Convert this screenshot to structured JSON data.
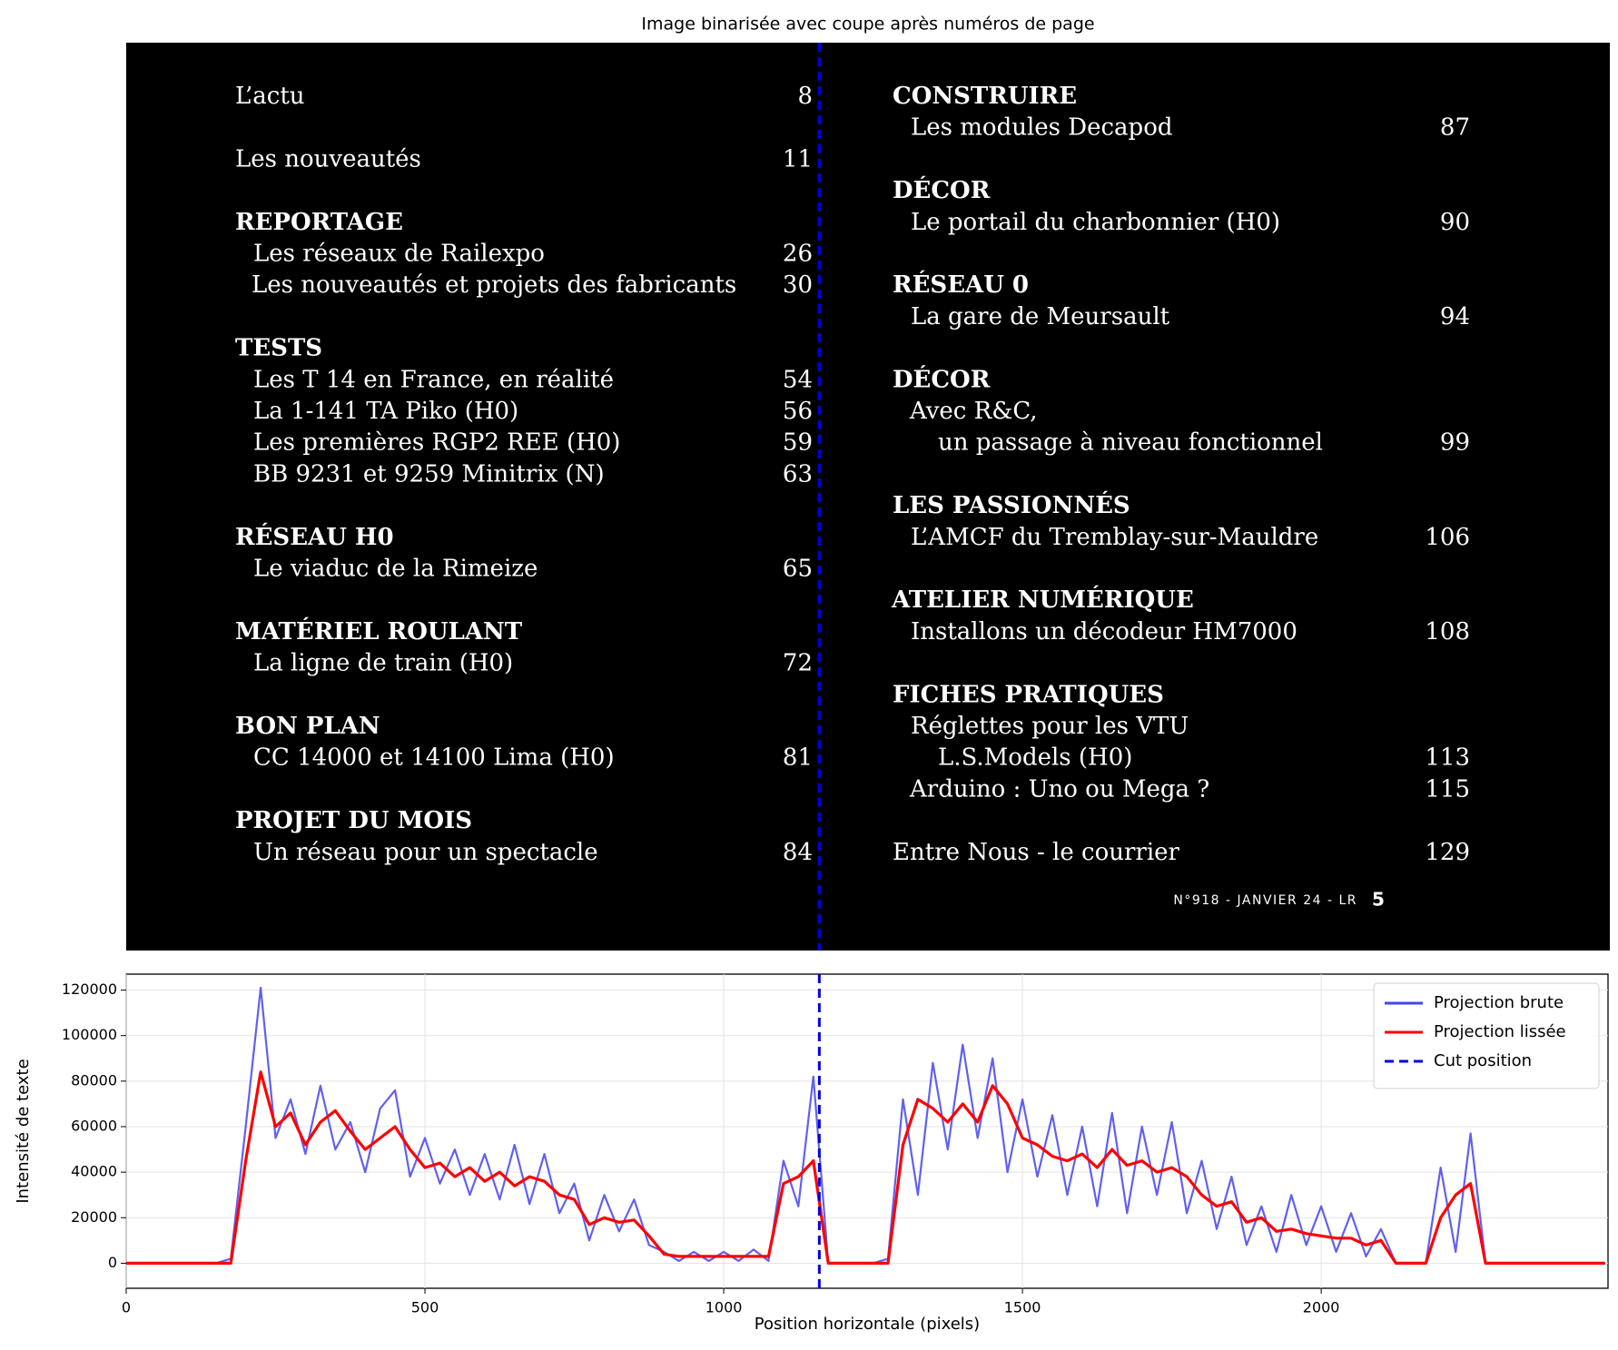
{
  "image_panel": {
    "title": "Image binarisée avec coupe après numéros de page",
    "left": [
      {
        "text": "L’actu",
        "page": "8"
      },
      {
        "text": "Les nouveautés",
        "page": "11"
      },
      {
        "text": "REPORTAGE",
        "heading": true
      },
      {
        "text": "Les réseaux de Railexpo",
        "page": "26"
      },
      {
        "text": "Les nouveautés et projets des fabricants",
        "page": "30"
      },
      {
        "text": "TESTS",
        "heading": true
      },
      {
        "text": "Les T 14 en France, en réalité",
        "page": "54"
      },
      {
        "text": "La 1-141 TA Piko (H0)",
        "page": "56"
      },
      {
        "text": "Les premières RGP2 REE (H0)",
        "page": "59"
      },
      {
        "text": "BB 9231 et 9259 Minitrix (N)",
        "page": "63"
      },
      {
        "text": "RÉSEAU H0",
        "heading": true
      },
      {
        "text": "Le viaduc de la Rimeize",
        "page": "65"
      },
      {
        "text": "MATÉRIEL ROULANT",
        "heading": true
      },
      {
        "text": "La ligne de train (H0)",
        "page": "72"
      },
      {
        "text": "BON PLAN",
        "heading": true
      },
      {
        "text": "CC 14000 et 14100 Lima (H0)",
        "page": "81"
      },
      {
        "text": "PROJET DU MOIS",
        "heading": true
      },
      {
        "text": "Un réseau pour un spectacle",
        "page": "84"
      }
    ],
    "right": [
      {
        "text": "CONSTRUIRE",
        "heading": true
      },
      {
        "text": "Les modules Decapod",
        "page": "87"
      },
      {
        "text": "DÉCOR",
        "heading": true
      },
      {
        "text": "Le portail du charbonnier (H0)",
        "page": "90"
      },
      {
        "text": "RÉSEAU 0",
        "heading": true
      },
      {
        "text": "La gare de Meursault",
        "page": "94"
      },
      {
        "text": "DÉCOR",
        "heading": true
      },
      {
        "text": "Avec R&C,"
      },
      {
        "text": "un passage à niveau fonctionnel",
        "page": "99"
      },
      {
        "text": "LES PASSIONNÉS",
        "heading": true
      },
      {
        "text": "L’AMCF du Tremblay-sur-Mauldre",
        "page": "106"
      },
      {
        "text": "ATELIER NUMÉRIQUE",
        "heading": true
      },
      {
        "text": "Installons un décodeur HM7000",
        "page": "108"
      },
      {
        "text": "FICHES PRATIQUES",
        "heading": true
      },
      {
        "text": "Réglettes pour les VTU"
      },
      {
        "text": "L.S.Models (H0)",
        "page": "113"
      },
      {
        "text": "Arduino : Uno ou Mega ?",
        "page": "115"
      },
      {
        "text": "Entre Nous - le courrier",
        "page": "129"
      }
    ],
    "footer": "N°918 - JANVIER 24 - LR",
    "footer_page": "5"
  },
  "chart_data": {
    "type": "line",
    "xlabel": "Position horizontale (pixels)",
    "ylabel": "Intensité de texte",
    "xlim": [
      0,
      2480
    ],
    "ylim": [
      -11000,
      127000
    ],
    "xticks": [
      0,
      500,
      1000,
      1500,
      2000
    ],
    "yticks": [
      0,
      20000,
      40000,
      60000,
      80000,
      100000,
      120000
    ],
    "grid": true,
    "legend": "upper right",
    "x": [
      0,
      25,
      50,
      75,
      100,
      125,
      150,
      175,
      200,
      225,
      250,
      275,
      300,
      325,
      350,
      375,
      400,
      425,
      450,
      475,
      500,
      525,
      550,
      575,
      600,
      625,
      650,
      675,
      700,
      725,
      750,
      775,
      800,
      825,
      850,
      875,
      900,
      925,
      950,
      975,
      1000,
      1025,
      1050,
      1075,
      1100,
      1125,
      1150,
      1175,
      1200,
      1225,
      1250,
      1275,
      1300,
      1325,
      1350,
      1375,
      1400,
      1425,
      1450,
      1475,
      1500,
      1525,
      1550,
      1575,
      1600,
      1625,
      1650,
      1675,
      1700,
      1725,
      1750,
      1775,
      1800,
      1825,
      1850,
      1875,
      1900,
      1925,
      1950,
      1975,
      2000,
      2025,
      2050,
      2075,
      2100,
      2125,
      2150,
      2175,
      2200,
      2225,
      2250,
      2275,
      2300,
      2325,
      2350,
      2375,
      2400,
      2425,
      2450,
      2475
    ],
    "series": [
      {
        "name": "Projection brute",
        "color": "#4444ee",
        "values": [
          0,
          0,
          0,
          0,
          0,
          0,
          0,
          2000,
          60000,
          121000,
          55000,
          72000,
          48000,
          78000,
          50000,
          62000,
          40000,
          68000,
          76000,
          38000,
          55000,
          35000,
          50000,
          30000,
          48000,
          28000,
          52000,
          26000,
          48000,
          22000,
          35000,
          10000,
          30000,
          14000,
          28000,
          8000,
          5000,
          1000,
          5000,
          1000,
          5000,
          1000,
          6000,
          1000,
          45000,
          25000,
          82000,
          0,
          0,
          0,
          0,
          2000,
          72000,
          30000,
          88000,
          50000,
          96000,
          55000,
          90000,
          40000,
          72000,
          38000,
          65000,
          30000,
          60000,
          25000,
          66000,
          22000,
          60000,
          30000,
          62000,
          22000,
          45000,
          15000,
          38000,
          8000,
          25000,
          5000,
          30000,
          8000,
          25000,
          5000,
          22000,
          3000,
          15000,
          0,
          0,
          0,
          42000,
          5000,
          57000,
          0,
          0,
          0,
          0,
          0,
          0,
          0,
          0,
          0
        ]
      },
      {
        "name": "Projection lissée",
        "color": "#ff0000",
        "values": [
          0,
          0,
          0,
          0,
          0,
          0,
          0,
          0,
          45000,
          84000,
          60000,
          66000,
          52000,
          62000,
          67000,
          58000,
          50000,
          55000,
          60000,
          50000,
          42000,
          44000,
          38000,
          42000,
          36000,
          40000,
          34000,
          38000,
          36000,
          30000,
          28000,
          17000,
          20000,
          18000,
          19000,
          12000,
          4000,
          3000,
          3000,
          3000,
          3000,
          3000,
          3000,
          3000,
          35000,
          38000,
          45000,
          0,
          0,
          0,
          0,
          0,
          52000,
          72000,
          68000,
          62000,
          70000,
          62000,
          78000,
          70000,
          55000,
          52000,
          47000,
          45000,
          48000,
          42000,
          50000,
          43000,
          45000,
          40000,
          42000,
          38000,
          30000,
          25000,
          27000,
          18000,
          20000,
          14000,
          15000,
          13000,
          12000,
          11000,
          11000,
          8000,
          10000,
          0,
          0,
          0,
          20000,
          30000,
          35000,
          0,
          0,
          0,
          0,
          0,
          0,
          0,
          0,
          0
        ]
      }
    ],
    "vlines": [
      {
        "name": "Cut position",
        "x": 1160,
        "color": "#0000dd"
      }
    ]
  }
}
